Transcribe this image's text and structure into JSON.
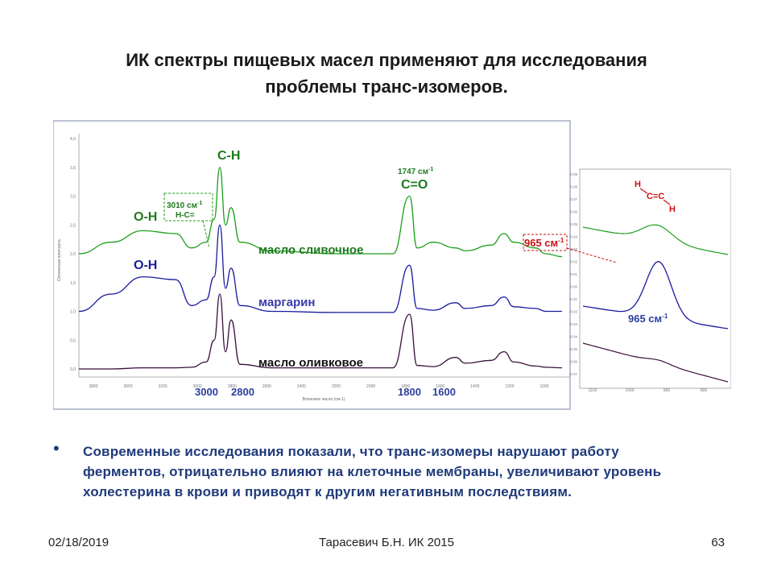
{
  "slide": {
    "title_line1": "ИК спектры пищевых масел применяют для исследования",
    "title_line2": "проблемы транс-изомеров.",
    "bullet_symbol": "•",
    "bullet_text": "Современные исследования показали, что транс-изомеры нарушают работу ферментов, отрицательно влияют на  клеточные мембраны, увеличивают уровень холестерина в крови и приводят к другим негативным последствиям.",
    "footer": {
      "date": "02/18/2019",
      "author": "Тарасевич Б.Н.  ИК 2015",
      "page": "63"
    }
  },
  "figure": {
    "annotations": {
      "oh_top": "O-H",
      "oh_mid": "O-H",
      "ch": "C-H",
      "co": "C=O",
      "co_freq": "1747 см",
      "co_sup": "-1",
      "hc_freq": "3010  см",
      "hc_sup": "-1",
      "hc_label": "H-C=",
      "trans_freq": "965 см",
      "trans_sup": "-1",
      "inset_freq": "965 см",
      "inset_sup": "-1",
      "molecule": {
        "h1": "H",
        "c_eq_c": "C=C",
        "h2": "H"
      }
    },
    "bottom_labels": {
      "a": "3000",
      "b": "2800",
      "c": "1800",
      "d": "1600"
    },
    "main_ticks_y": [
      "4,0",
      "3,5",
      "3,0",
      "2,5",
      "2,0",
      "1,5",
      "1,0",
      "0,5",
      "0,0"
    ],
    "main_ticks_x": [
      "3800",
      "3600",
      "3200",
      "3000",
      "2800",
      "2600",
      "2400",
      "2200",
      "2000",
      "1800",
      "1600",
      "1400",
      "1200",
      "1000"
    ],
    "main_xlabel": "Волновое число (см-1)",
    "main_ylabel": "Оптическая плотность",
    "inset_ticks_y": [
      "0.08",
      "0.08",
      "0.07",
      "0.06",
      "0.05",
      "0.04",
      "0.03",
      "0.02",
      "0.01",
      "0.00",
      "-0.01",
      "-0.02",
      "-0.03",
      "-0.04",
      "-0.05",
      "-0.06",
      "-0.07"
    ],
    "inset_ticks_x": [
      "1100",
      "1000",
      "900",
      "800"
    ],
    "colors": {
      "butter": "#1e9e1e",
      "margarine": "#1a1a9e",
      "olive": "#3a0f3c",
      "accent_red": "#cc1111",
      "label_blue": "#1f3a7a"
    }
  },
  "chart_data": {
    "type": "line",
    "title": "",
    "xlabel": "Волновое число (см-1)",
    "ylabel": "Оптическая плотность",
    "ylim": [
      0,
      4
    ],
    "series": [
      {
        "name": "масло сливочное",
        "x": [
          3800,
          3600,
          3400,
          3200,
          3100,
          3010,
          2960,
          2925,
          2890,
          2855,
          2800,
          2600,
          2200,
          1850,
          1747,
          1700,
          1600,
          1460,
          1400,
          1240,
          1160,
          1100,
          965,
          900,
          800
        ],
        "y": [
          2.0,
          2.2,
          2.4,
          2.35,
          2.1,
          2.2,
          2.6,
          3.5,
          2.5,
          2.8,
          2.2,
          2.05,
          2.0,
          2.0,
          3.0,
          2.1,
          2.2,
          2.1,
          2.05,
          2.15,
          2.35,
          2.2,
          2.1,
          2.0,
          1.95
        ]
      },
      {
        "name": "маргарин",
        "x": [
          3800,
          3600,
          3400,
          3200,
          3100,
          3010,
          2960,
          2925,
          2890,
          2855,
          2800,
          2600,
          2200,
          1850,
          1747,
          1700,
          1600,
          1460,
          1400,
          1240,
          1160,
          1100,
          965,
          900,
          800
        ],
        "y": [
          1.0,
          1.3,
          1.6,
          1.55,
          1.1,
          1.2,
          1.6,
          2.5,
          1.4,
          1.75,
          1.1,
          1.0,
          0.98,
          0.98,
          1.8,
          1.05,
          1.02,
          1.15,
          1.05,
          1.1,
          1.25,
          1.08,
          1.05,
          1.0,
          1.0
        ]
      },
      {
        "name": "масло оливковое",
        "x": [
          3800,
          3600,
          3400,
          3200,
          3100,
          3010,
          2960,
          2925,
          2890,
          2855,
          2800,
          2600,
          2200,
          1850,
          1747,
          1700,
          1600,
          1460,
          1400,
          1240,
          1160,
          1100,
          965,
          900,
          800
        ],
        "y": [
          0.0,
          0.0,
          0.02,
          0.02,
          0.03,
          0.12,
          0.5,
          1.3,
          0.3,
          0.85,
          0.08,
          0.02,
          0.02,
          0.02,
          0.95,
          0.06,
          0.04,
          0.2,
          0.1,
          0.15,
          0.3,
          0.12,
          0.05,
          0.03,
          0.02
        ]
      }
    ]
  }
}
